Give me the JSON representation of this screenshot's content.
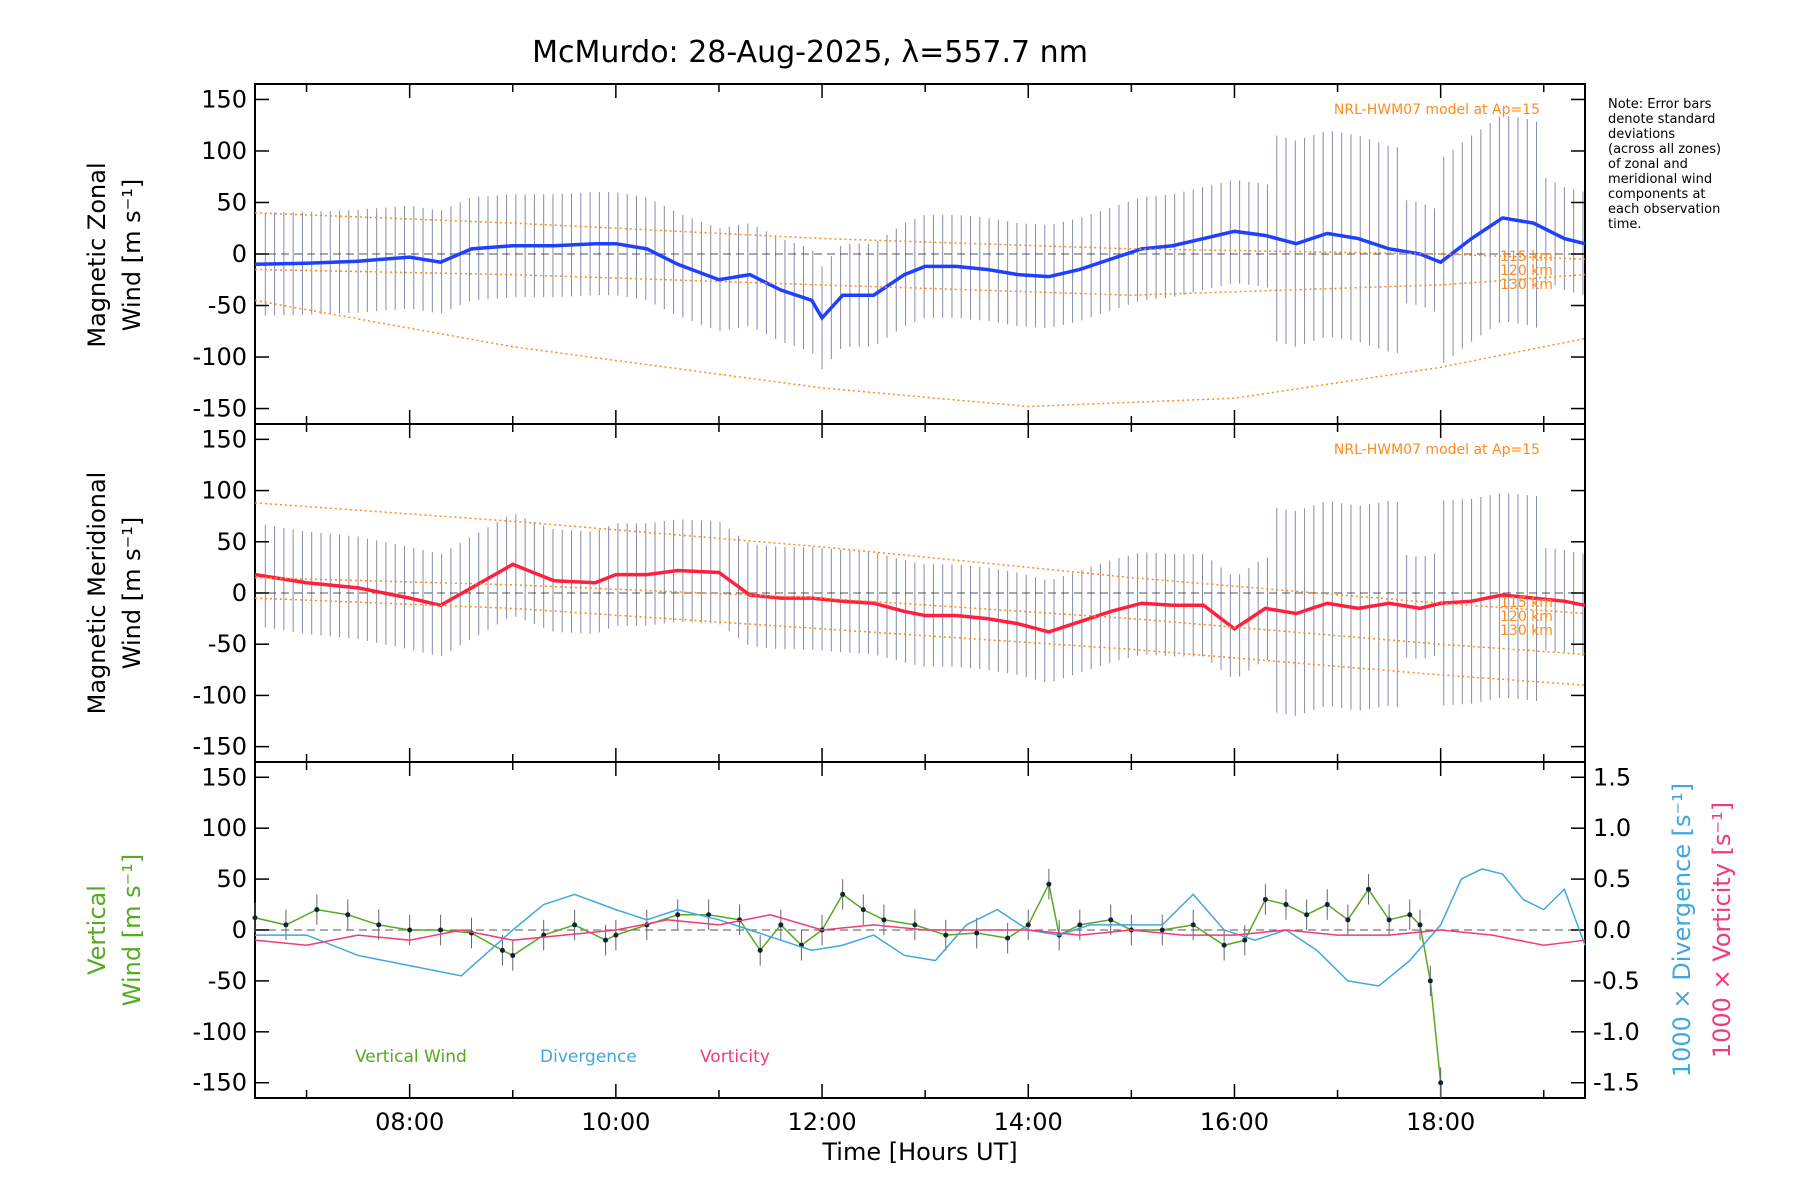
{
  "chart_data": [
    {
      "type": "line",
      "panel": "zonal",
      "title": "McMurdo: 28-Aug-2025, λ=557.7 nm",
      "ylabel_line1": "Magnetic Zonal",
      "ylabel_line2": "Wind [m s⁻¹]",
      "xlim_hours": [
        6.5,
        19.4
      ],
      "ylim": [
        -165,
        165
      ],
      "yticks": [
        -150,
        -100,
        -50,
        0,
        50,
        100,
        150
      ],
      "model_label": "NRL-HWM07 model at Ap=15",
      "height_labels": [
        "115 km",
        "120 km",
        "130 km"
      ],
      "series": [
        {
          "name": "Mean zonal wind",
          "color": "#2040ff",
          "x": [
            6.5,
            7.0,
            7.5,
            8.0,
            8.3,
            8.6,
            9.0,
            9.4,
            9.8,
            10.0,
            10.3,
            10.6,
            11.0,
            11.3,
            11.6,
            11.9,
            12.0,
            12.2,
            12.5,
            12.8,
            13.0,
            13.3,
            13.6,
            13.9,
            14.2,
            14.5,
            14.8,
            15.1,
            15.4,
            15.7,
            16.0,
            16.3,
            16.6,
            16.9,
            17.2,
            17.5,
            17.8,
            18.0,
            18.3,
            18.6,
            18.9,
            19.2,
            19.4
          ],
          "y": [
            -10,
            -9,
            -7,
            -3,
            -8,
            5,
            8,
            8,
            10,
            10,
            5,
            -10,
            -25,
            -20,
            -35,
            -45,
            -62,
            -40,
            -40,
            -20,
            -12,
            -12,
            -15,
            -20,
            -22,
            -15,
            -5,
            5,
            8,
            15,
            22,
            18,
            10,
            20,
            15,
            5,
            0,
            -8,
            15,
            35,
            30,
            15,
            10
          ]
        },
        {
          "name": "HWM07 115 km",
          "color": "#ff8c1a",
          "x": [
            6.5,
            9,
            12,
            15,
            18,
            19.4
          ],
          "y": [
            40,
            30,
            15,
            5,
            0,
            -5
          ]
        },
        {
          "name": "HWM07 120 km",
          "color": "#ff8c1a",
          "x": [
            6.5,
            9,
            12,
            15,
            18,
            19.4
          ],
          "y": [
            -15,
            -20,
            -30,
            -40,
            -30,
            -20
          ]
        },
        {
          "name": "HWM07 130 km",
          "color": "#ff8c1a",
          "x": [
            6.5,
            9,
            12,
            14,
            16,
            18,
            19.4
          ],
          "y": [
            -45,
            -90,
            -130,
            -148,
            -140,
            -110,
            -82
          ]
        }
      ]
    },
    {
      "type": "line",
      "panel": "meridional",
      "ylabel_line1": "Magnetic Meridional",
      "ylabel_line2": "Wind [m s⁻¹]",
      "xlim_hours": [
        6.5,
        19.4
      ],
      "ylim": [
        -165,
        165
      ],
      "yticks": [
        -150,
        -100,
        -50,
        0,
        50,
        100,
        150
      ],
      "model_label": "NRL-HWM07 model at Ap=15",
      "height_labels": [
        "115 km",
        "120 km",
        "130 km"
      ],
      "series": [
        {
          "name": "Mean meridional wind",
          "color": "#ff2040",
          "x": [
            6.5,
            7.0,
            7.5,
            8.0,
            8.3,
            8.6,
            9.0,
            9.4,
            9.8,
            10.0,
            10.3,
            10.6,
            11.0,
            11.3,
            11.6,
            11.9,
            12.2,
            12.5,
            12.8,
            13.0,
            13.3,
            13.6,
            13.9,
            14.2,
            14.5,
            14.8,
            15.1,
            15.4,
            15.7,
            16.0,
            16.3,
            16.6,
            16.9,
            17.2,
            17.5,
            17.8,
            18.0,
            18.3,
            18.6,
            18.9,
            19.2,
            19.4
          ],
          "y": [
            18,
            10,
            5,
            -5,
            -12,
            5,
            28,
            12,
            10,
            18,
            18,
            22,
            20,
            -2,
            -5,
            -5,
            -8,
            -10,
            -18,
            -22,
            -22,
            -25,
            -30,
            -38,
            -28,
            -18,
            -10,
            -12,
            -12,
            -35,
            -15,
            -20,
            -10,
            -15,
            -10,
            -15,
            -10,
            -8,
            -2,
            -5,
            -8,
            -12
          ]
        },
        {
          "name": "HWM07 115 km",
          "color": "#ff8c1a",
          "x": [
            6.5,
            9,
            12,
            15,
            18,
            19.4
          ],
          "y": [
            88,
            70,
            45,
            15,
            -10,
            -20
          ]
        },
        {
          "name": "HWM07 120 km",
          "color": "#ff8c1a",
          "x": [
            6.5,
            9,
            12,
            15,
            18,
            19.4
          ],
          "y": [
            15,
            8,
            -5,
            -25,
            -50,
            -60
          ]
        },
        {
          "name": "HWM07 130 km",
          "color": "#ff8c1a",
          "x": [
            6.5,
            9,
            12,
            15,
            18,
            19.4
          ],
          "y": [
            -5,
            -15,
            -35,
            -55,
            -80,
            -90
          ]
        }
      ]
    },
    {
      "type": "line",
      "panel": "vertical",
      "ylabel_line1": "Vertical",
      "ylabel_line2": "Wind [m s⁻¹]",
      "y2label_divergence": "1000 × Divergence [s⁻¹]",
      "y2label_vorticity": "1000 × Vorticity [s⁻¹]",
      "xlabel": "Time [Hours UT]",
      "xlim_hours": [
        6.5,
        19.4
      ],
      "xticks": [
        "08:00",
        "10:00",
        "12:00",
        "14:00",
        "16:00",
        "18:00"
      ],
      "ylim": [
        -165,
        165
      ],
      "yticks": [
        -150,
        -100,
        -50,
        0,
        50,
        100,
        150
      ],
      "y2lim": [
        -1.65,
        1.65
      ],
      "y2ticks": [
        -1.5,
        -1.0,
        -0.5,
        0.0,
        0.5,
        1.0,
        1.5
      ],
      "legend": [
        "Vertical Wind",
        "Divergence",
        "Vorticity"
      ],
      "series": [
        {
          "name": "Vertical Wind",
          "color": "#55aa22",
          "axis": "left",
          "x": [
            6.5,
            6.8,
            7.1,
            7.4,
            7.7,
            8.0,
            8.3,
            8.6,
            8.9,
            9.0,
            9.3,
            9.6,
            9.9,
            10.0,
            10.3,
            10.6,
            10.9,
            11.2,
            11.4,
            11.6,
            11.8,
            12.0,
            12.2,
            12.4,
            12.6,
            12.9,
            13.2,
            13.5,
            13.8,
            14.0,
            14.2,
            14.3,
            14.5,
            14.8,
            15.0,
            15.3,
            15.6,
            15.9,
            16.1,
            16.3,
            16.5,
            16.7,
            16.9,
            17.1,
            17.3,
            17.5,
            17.7,
            17.8,
            17.9,
            18.0
          ],
          "y": [
            12,
            5,
            20,
            15,
            5,
            0,
            0,
            -3,
            -20,
            -25,
            -5,
            5,
            -10,
            -5,
            5,
            15,
            15,
            10,
            -20,
            5,
            -15,
            0,
            35,
            20,
            10,
            5,
            -5,
            -3,
            -8,
            5,
            45,
            -5,
            5,
            10,
            0,
            0,
            5,
            -15,
            -10,
            30,
            25,
            15,
            25,
            10,
            40,
            10,
            15,
            5,
            -50,
            -150
          ]
        },
        {
          "name": "Divergence",
          "color": "#40a8e0",
          "axis": "right",
          "x": [
            6.5,
            7.0,
            7.5,
            8.0,
            8.5,
            9.0,
            9.3,
            9.6,
            10.0,
            10.3,
            10.6,
            11.0,
            11.3,
            11.6,
            11.9,
            12.2,
            12.5,
            12.8,
            13.1,
            13.4,
            13.7,
            14.0,
            14.3,
            14.6,
            15.0,
            15.3,
            15.6,
            15.9,
            16.2,
            16.5,
            16.8,
            17.1,
            17.4,
            17.7,
            18.0,
            18.2,
            18.4,
            18.6,
            18.8,
            19.0,
            19.2,
            19.4
          ],
          "y": [
            -0.05,
            -0.05,
            -0.25,
            -0.35,
            -0.45,
            0.0,
            0.25,
            0.35,
            0.2,
            0.1,
            0.2,
            0.1,
            0.0,
            -0.1,
            -0.2,
            -0.15,
            -0.05,
            -0.25,
            -0.3,
            0.05,
            0.2,
            0.0,
            -0.05,
            0.05,
            0.05,
            0.05,
            0.35,
            0.0,
            -0.1,
            0.0,
            -0.2,
            -0.5,
            -0.55,
            -0.3,
            0.05,
            0.5,
            0.6,
            0.55,
            0.3,
            0.2,
            0.4,
            -0.15
          ]
        },
        {
          "name": "Vorticity",
          "color": "#f03c78",
          "axis": "right",
          "x": [
            6.5,
            7.0,
            7.5,
            8.0,
            8.5,
            9.0,
            9.5,
            10.0,
            10.5,
            11.0,
            11.5,
            12.0,
            12.5,
            13.0,
            13.5,
            14.0,
            14.5,
            15.0,
            15.5,
            16.0,
            16.5,
            17.0,
            17.5,
            18.0,
            18.5,
            19.0,
            19.4
          ],
          "y": [
            -0.1,
            -0.15,
            -0.05,
            -0.1,
            0.0,
            -0.1,
            -0.05,
            0.0,
            0.1,
            0.05,
            0.15,
            0.0,
            0.05,
            0.0,
            0.0,
            0.0,
            -0.05,
            0.0,
            -0.05,
            -0.05,
            0.0,
            -0.05,
            -0.05,
            0.0,
            -0.05,
            -0.15,
            -0.1
          ]
        }
      ]
    }
  ],
  "note": [
    "Note: Error bars",
    "denote standard",
    "deviations",
    "(across all zones)",
    "of zonal and",
    "meridional wind",
    "components at",
    "each observation",
    "time."
  ]
}
